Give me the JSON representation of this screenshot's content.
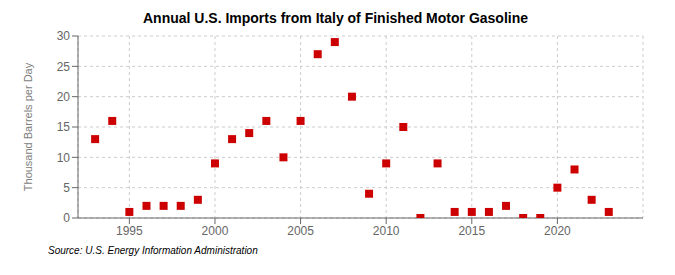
{
  "chart_data": {
    "type": "scatter",
    "title": "Annual U.S. Imports from Italy of Finished Motor Gasoline",
    "ylabel": "Thousand Barrels per Day",
    "annotations": [
      "Source: U.S. Energy Information Administration"
    ],
    "x": [
      1993,
      1994,
      1995,
      1996,
      1997,
      1998,
      1999,
      2000,
      2001,
      2002,
      2003,
      2004,
      2005,
      2006,
      2007,
      2008,
      2009,
      2010,
      2011,
      2012,
      2013,
      2014,
      2015,
      2016,
      2017,
      2018,
      2019,
      2020,
      2021,
      2022,
      2023
    ],
    "values": [
      13,
      16,
      1,
      2,
      2,
      2,
      3,
      9,
      13,
      14,
      16,
      10,
      16,
      27,
      29,
      20,
      4,
      9,
      15,
      0,
      9,
      1,
      1,
      1,
      2,
      0,
      0,
      5,
      8,
      3,
      1
    ],
    "color": "#cc0000",
    "marker": "square",
    "xlim": [
      1992,
      2025
    ],
    "ylim": [
      0,
      30
    ],
    "xticks": [
      1995,
      2000,
      2005,
      2010,
      2015,
      2020
    ],
    "yticks": [
      0,
      5,
      10,
      15,
      20,
      25,
      30
    ],
    "grid": true
  }
}
